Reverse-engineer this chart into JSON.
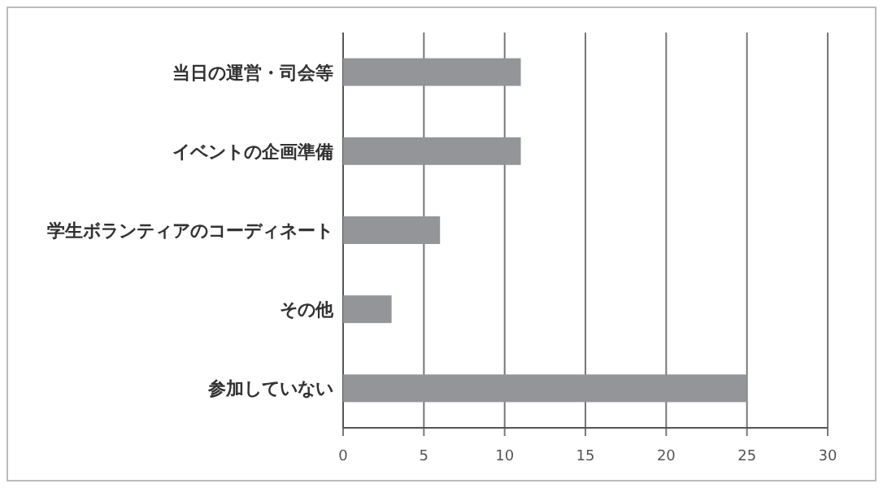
{
  "chart_data": {
    "type": "bar",
    "orientation": "horizontal",
    "categories": [
      "当日の運営・司会等",
      "イベントの企画準備",
      "学生ボランティアのコーディネート",
      "その他",
      "参加していない"
    ],
    "values": [
      11,
      11,
      6,
      3,
      25
    ],
    "color": "#939598",
    "xlim": [
      0,
      30
    ],
    "xticks": [
      0,
      5,
      10,
      15,
      20,
      25,
      30
    ],
    "grid": "x"
  }
}
